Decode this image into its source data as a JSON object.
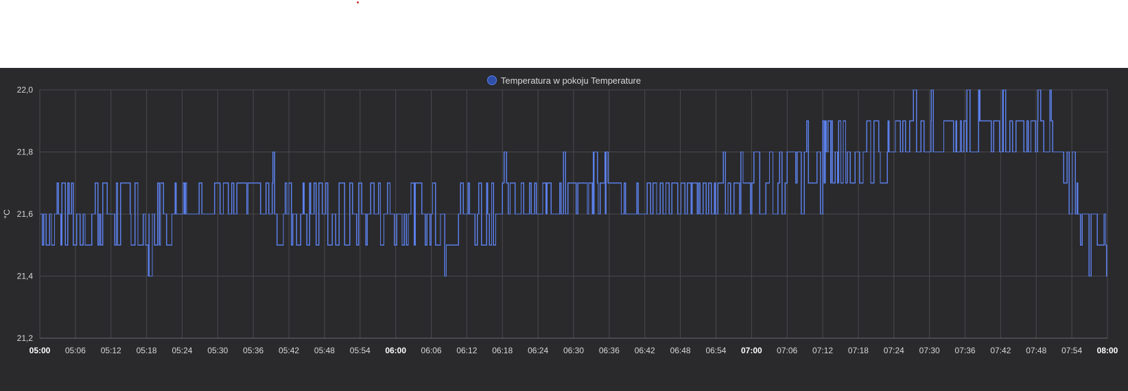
{
  "chart_data": {
    "type": "line",
    "legend": {
      "label": "Temperatura w pokoju Temperature",
      "placement": "top-center"
    },
    "ylabel": "°C",
    "ylim": [
      21.2,
      22.0
    ],
    "y_ticks": [
      "21,2",
      "21,4",
      "21,6",
      "21,8",
      "22,0"
    ],
    "x_ticks": [
      {
        "label": "05:00",
        "bold": true
      },
      {
        "label": "05:06",
        "bold": false
      },
      {
        "label": "05:12",
        "bold": false
      },
      {
        "label": "05:18",
        "bold": false
      },
      {
        "label": "05:24",
        "bold": false
      },
      {
        "label": "05:30",
        "bold": false
      },
      {
        "label": "05:36",
        "bold": false
      },
      {
        "label": "05:42",
        "bold": false
      },
      {
        "label": "05:48",
        "bold": false
      },
      {
        "label": "05:54",
        "bold": false
      },
      {
        "label": "06:00",
        "bold": true
      },
      {
        "label": "06:06",
        "bold": false
      },
      {
        "label": "06:12",
        "bold": false
      },
      {
        "label": "06:18",
        "bold": false
      },
      {
        "label": "06:24",
        "bold": false
      },
      {
        "label": "06:30",
        "bold": false
      },
      {
        "label": "06:36",
        "bold": false
      },
      {
        "label": "06:42",
        "bold": false
      },
      {
        "label": "06:48",
        "bold": false
      },
      {
        "label": "06:54",
        "bold": false
      },
      {
        "label": "07:00",
        "bold": true
      },
      {
        "label": "07:06",
        "bold": false
      },
      {
        "label": "07:12",
        "bold": false
      },
      {
        "label": "07:18",
        "bold": false
      },
      {
        "label": "07:24",
        "bold": false
      },
      {
        "label": "07:30",
        "bold": false
      },
      {
        "label": "07:36",
        "bold": false
      },
      {
        "label": "07:42",
        "bold": false
      },
      {
        "label": "07:48",
        "bold": false
      },
      {
        "label": "07:54",
        "bold": false
      },
      {
        "label": "08:00",
        "bold": true
      }
    ],
    "xlim": [
      "05:00",
      "08:00"
    ],
    "grid": true,
    "series": [
      {
        "name": "Temperatura w pokoju Temperature",
        "color": "#5b7fe8",
        "segments": [
          {
            "from": "05:00",
            "to": "05:09",
            "band": [
              21.5,
              21.7
            ]
          },
          {
            "from": "05:09",
            "to": "05:23",
            "band": [
              21.5,
              21.7
            ]
          },
          {
            "from": "05:23",
            "to": "05:40",
            "band": [
              21.6,
              21.7
            ]
          },
          {
            "from": "05:40",
            "to": "06:06",
            "band": [
              21.5,
              21.7
            ]
          },
          {
            "from": "06:06",
            "to": "06:17",
            "band": [
              21.5,
              21.7
            ]
          },
          {
            "from": "06:17",
            "to": "06:54",
            "band": [
              21.6,
              21.7
            ]
          },
          {
            "from": "06:54",
            "to": "07:06",
            "band": [
              21.6,
              21.8
            ]
          },
          {
            "from": "07:06",
            "to": "07:12",
            "band": [
              21.6,
              21.8
            ]
          },
          {
            "from": "07:12",
            "to": "07:23",
            "band": [
              21.7,
              21.9
            ]
          },
          {
            "from": "07:23",
            "to": "07:52",
            "band": [
              21.8,
              21.9
            ]
          },
          {
            "from": "07:52",
            "to": "07:55",
            "band": [
              21.6,
              21.8
            ]
          },
          {
            "from": "07:55",
            "to": "08:00",
            "band": [
              21.4,
              21.6
            ]
          }
        ],
        "spikes": [
          {
            "time": "05:18",
            "value": 21.4
          },
          {
            "time": "05:39",
            "value": 21.8
          },
          {
            "time": "06:08",
            "value": 21.4
          },
          {
            "time": "06:18",
            "value": 21.8
          },
          {
            "time": "06:28",
            "value": 21.8
          },
          {
            "time": "06:33",
            "value": 21.8
          },
          {
            "time": "06:35",
            "value": 21.8
          },
          {
            "time": "07:09",
            "value": 21.9
          },
          {
            "time": "07:13",
            "value": 21.9
          },
          {
            "time": "07:27",
            "value": 22.0
          },
          {
            "time": "07:30",
            "value": 22.0
          },
          {
            "time": "07:36",
            "value": 22.0
          },
          {
            "time": "07:38",
            "value": 22.0
          },
          {
            "time": "07:42",
            "value": 22.0
          },
          {
            "time": "07:48",
            "value": 22.0
          },
          {
            "time": "07:50",
            "value": 22.0
          }
        ]
      }
    ]
  }
}
